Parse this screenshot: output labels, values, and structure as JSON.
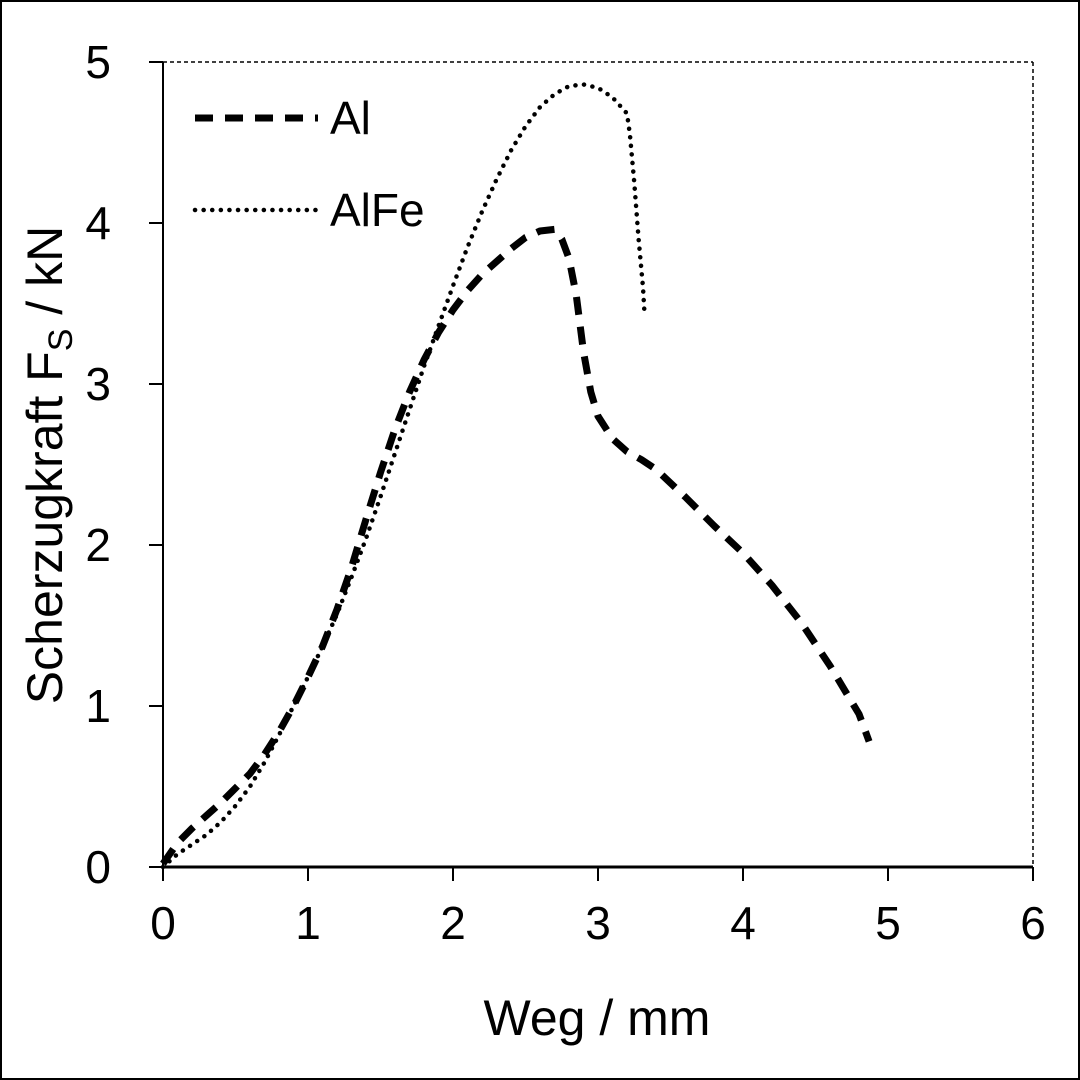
{
  "chart_data": {
    "type": "line",
    "xlabel": "Weg / mm",
    "ylabel": {
      "main": "Scherzugkraft F",
      "subscript": "S",
      "suffix": " / kN"
    },
    "xlim": [
      0,
      6
    ],
    "ylim": [
      0,
      5
    ],
    "xticks": [
      "0",
      "1",
      "2",
      "3",
      "4",
      "5",
      "6"
    ],
    "yticks": [
      "0",
      "1",
      "2",
      "3",
      "4",
      "5"
    ],
    "grid": false,
    "legend_position": "top-left",
    "series": [
      {
        "name": "Al",
        "style": "dashed",
        "color": "#000000",
        "x": [
          0.0,
          0.1,
          0.2,
          0.3,
          0.4,
          0.5,
          0.6,
          0.7,
          0.8,
          0.9,
          1.0,
          1.1,
          1.2,
          1.3,
          1.4,
          1.5,
          1.6,
          1.7,
          1.8,
          1.9,
          2.0,
          2.1,
          2.2,
          2.3,
          2.4,
          2.5,
          2.6,
          2.7,
          2.75,
          2.8,
          2.85,
          2.9,
          2.95,
          3.0,
          3.1,
          3.2,
          3.3,
          3.4,
          3.6,
          3.8,
          4.0,
          4.2,
          4.4,
          4.6,
          4.8,
          4.87
        ],
        "y": [
          0.02,
          0.15,
          0.24,
          0.32,
          0.4,
          0.49,
          0.58,
          0.7,
          0.84,
          1.0,
          1.18,
          1.37,
          1.6,
          1.86,
          2.16,
          2.45,
          2.72,
          2.95,
          3.15,
          3.32,
          3.46,
          3.58,
          3.68,
          3.76,
          3.84,
          3.91,
          3.95,
          3.96,
          3.9,
          3.78,
          3.55,
          3.2,
          2.95,
          2.8,
          2.66,
          2.58,
          2.53,
          2.47,
          2.3,
          2.12,
          1.95,
          1.75,
          1.52,
          1.25,
          0.95,
          0.78
        ]
      },
      {
        "name": "AlFe",
        "style": "dotted",
        "color": "#000000",
        "x": [
          0.0,
          0.1,
          0.2,
          0.3,
          0.4,
          0.5,
          0.6,
          0.7,
          0.8,
          0.9,
          1.0,
          1.1,
          1.2,
          1.3,
          1.4,
          1.5,
          1.6,
          1.7,
          1.8,
          1.9,
          2.0,
          2.1,
          2.2,
          2.3,
          2.4,
          2.5,
          2.6,
          2.7,
          2.8,
          2.9,
          3.0,
          3.1,
          3.2,
          3.22,
          3.25,
          3.28,
          3.31,
          3.32
        ],
        "y": [
          0.0,
          0.08,
          0.14,
          0.2,
          0.28,
          0.38,
          0.5,
          0.65,
          0.82,
          1.0,
          1.18,
          1.37,
          1.57,
          1.8,
          2.04,
          2.3,
          2.57,
          2.84,
          3.11,
          3.36,
          3.61,
          3.85,
          4.07,
          4.27,
          4.45,
          4.6,
          4.72,
          4.8,
          4.85,
          4.86,
          4.84,
          4.78,
          4.68,
          4.55,
          4.25,
          3.9,
          3.6,
          3.45
        ]
      }
    ]
  }
}
